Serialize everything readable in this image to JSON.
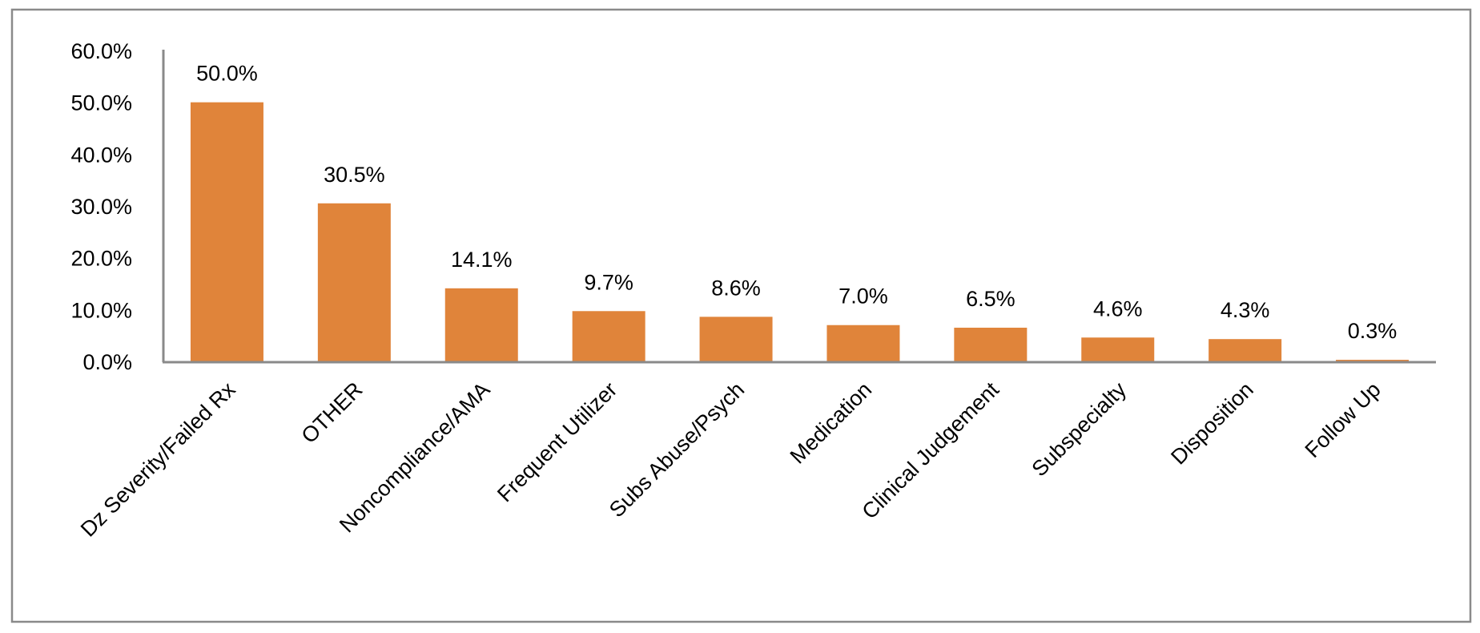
{
  "chart_data": {
    "type": "bar",
    "title": "",
    "xlabel": "",
    "ylabel": "",
    "categories": [
      "Dz Severity/Failed Rx",
      "OTHER",
      "Noncompliance/AMA",
      "Frequent Utilizer",
      "Subs Abuse/Psych",
      "Medication",
      "Clinical Judgement",
      "Subspecialty",
      "Disposition",
      "Follow Up"
    ],
    "values": [
      50.0,
      30.5,
      14.1,
      9.7,
      8.6,
      7.0,
      6.5,
      4.6,
      4.3,
      0.3
    ],
    "data_labels": [
      "50.0%",
      "30.5%",
      "14.1%",
      "9.7%",
      "8.6%",
      "7.0%",
      "6.5%",
      "4.6%",
      "4.3%",
      "0.3%"
    ],
    "ylim": [
      0,
      60
    ],
    "y_ticks": [
      "0.0%",
      "10.0%",
      "20.0%",
      "30.0%",
      "40.0%",
      "50.0%",
      "60.0%"
    ],
    "grid": false,
    "legend": "none",
    "bar_color": "#E0843A",
    "axis_color": "#888888"
  }
}
